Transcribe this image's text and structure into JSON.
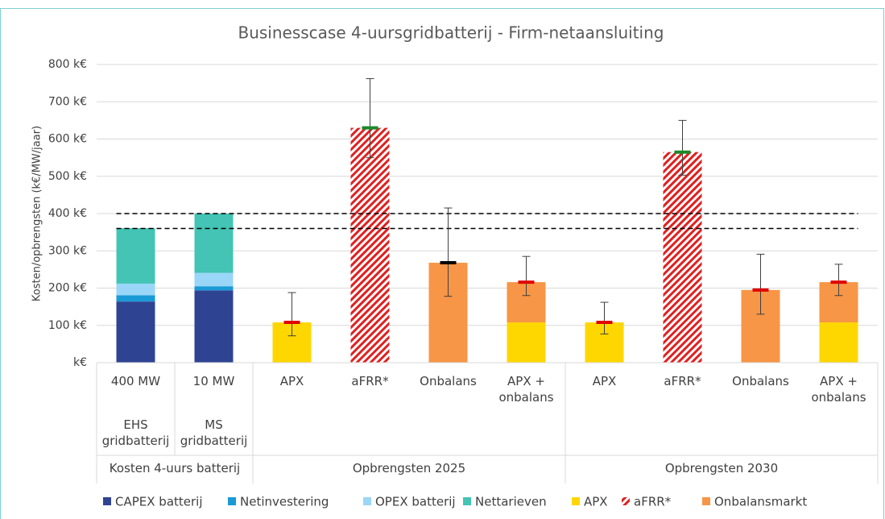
{
  "chart_data": {
    "type": "stacked_bar",
    "title": "Businesscase 4-uursgridbatterij - Firm-netaansluiting",
    "y_label": "Kosten/opbrengsten (k€/MW/jaar)",
    "categories": [
      "400 MW",
      "10 MW",
      "APX",
      "aFRR*",
      "Onbalans",
      "APX + onbalans",
      "APX",
      "aFRR*",
      "Onbalans",
      "APX + onbalans"
    ],
    "subcategories": [
      "EHS gridbatterij",
      "MS gridbatterij",
      null,
      null,
      null,
      null,
      null,
      null,
      null,
      null
    ],
    "groups": [
      "Kosten 4-uurs batterij",
      "Opbrengsten 2025",
      "Opbrengsten 2030"
    ],
    "group_sizes": [
      2,
      4,
      4
    ],
    "series": [
      {
        "name": "CAPEX batterij",
        "color": "#2f4393",
        "values": [
          164,
          194,
          null,
          null,
          null,
          null,
          null,
          null,
          null,
          null
        ]
      },
      {
        "name": "Netinvestering",
        "color": "#1a9ad6",
        "values": [
          17,
          11,
          null,
          null,
          null,
          null,
          null,
          null,
          null,
          null
        ]
      },
      {
        "name": "OPEX batterij",
        "color": "#9ad6f8",
        "values": [
          31,
          36,
          null,
          null,
          null,
          null,
          null,
          null,
          null,
          null
        ]
      },
      {
        "name": "Nettarieven",
        "color": "#43c4b4",
        "values": [
          149,
          159,
          null,
          null,
          null,
          null,
          null,
          null,
          null,
          null
        ]
      },
      {
        "name": "APX",
        "color": "#ffd700",
        "values": [
          null,
          null,
          108,
          null,
          null,
          108,
          108,
          null,
          null,
          108
        ]
      },
      {
        "name": "aFRR*",
        "color": "#e02020",
        "hatch": true,
        "values": [
          null,
          null,
          null,
          630,
          null,
          null,
          null,
          565,
          null,
          null
        ]
      },
      {
        "name": "Onbalansmarkt",
        "color": "#f79646",
        "values": [
          null,
          null,
          null,
          null,
          268,
          108,
          null,
          null,
          195,
          108
        ]
      }
    ],
    "error_center": [
      null,
      null,
      108,
      630,
      268,
      216,
      108,
      565,
      195,
      216
    ],
    "error_low": [
      null,
      null,
      72,
      550,
      178,
      180,
      77,
      503,
      130,
      180
    ],
    "error_high": [
      null,
      null,
      188,
      762,
      415,
      285,
      162,
      650,
      291,
      264
    ],
    "error_marker_colors": [
      null,
      null,
      "#e00000",
      "#1a8a2a",
      "#000000",
      "#e00000",
      "#e00000",
      "#1a8a2a",
      "#e00000",
      "#e00000"
    ],
    "reference_lines": [
      360,
      400
    ],
    "ylim": [
      0,
      800
    ],
    "yticks": [
      {
        "value": 0,
        "label": "k€"
      },
      {
        "value": 100,
        "label": "100 k€"
      },
      {
        "value": 200,
        "label": "200 k€"
      },
      {
        "value": 300,
        "label": "300 k€"
      },
      {
        "value": 400,
        "label": "400 k€"
      },
      {
        "value": 500,
        "label": "500 k€"
      },
      {
        "value": 600,
        "label": "600 k€"
      },
      {
        "value": 700,
        "label": "700 k€"
      },
      {
        "value": 800,
        "label": "800 k€"
      }
    ],
    "grid": true
  }
}
